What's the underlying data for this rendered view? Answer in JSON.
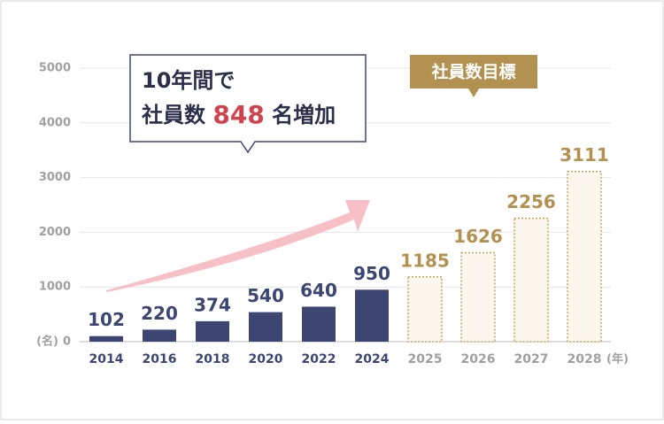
{
  "chart_data": {
    "type": "bar",
    "categories": [
      "2014",
      "2016",
      "2018",
      "2020",
      "2022",
      "2024",
      "2025",
      "2026",
      "2027",
      "2028"
    ],
    "series": [
      {
        "values": [
          102,
          220,
          374,
          540,
          640,
          950,
          null,
          null,
          null,
          null
        ],
        "color": "#3d4673",
        "label_color": "#3d4673"
      },
      {
        "values": [
          null,
          null,
          null,
          null,
          null,
          null,
          1185,
          1626,
          2256,
          3111
        ],
        "color": "#fbf7ee",
        "stroke": "#c9a458",
        "label_color": "#b39150",
        "dashed": true
      }
    ],
    "ylim": [
      0,
      5000
    ],
    "yticks": [
      0,
      1000,
      2000,
      3000,
      4000,
      5000
    ],
    "grid": true,
    "y_unit": "(名)",
    "x_unit": "(年)",
    "callout": {
      "line1": "10年間で",
      "line2_pre": "社員数",
      "line2_num": "848",
      "line2_post": "名増加"
    },
    "target_label": "社員数目標"
  }
}
